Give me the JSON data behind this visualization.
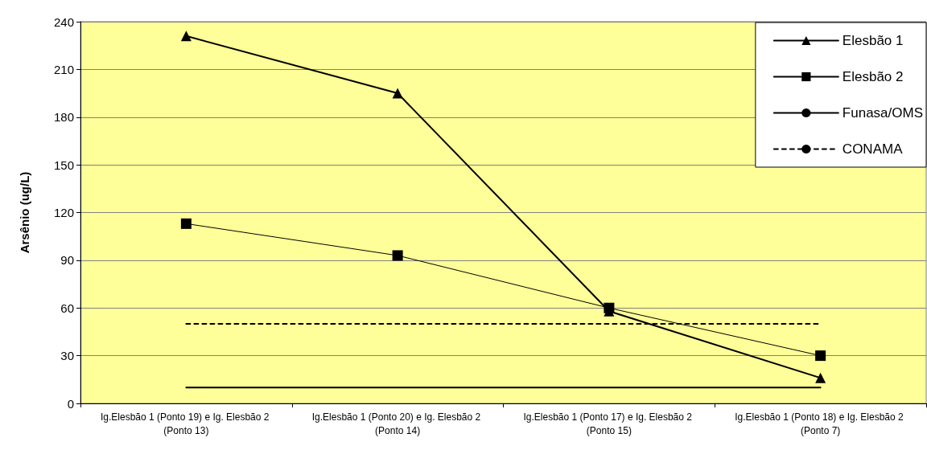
{
  "chart_data": {
    "type": "line",
    "ylabel": "Arsênio (ug/L)",
    "categories": [
      "Ig.Elesbão 1 (Ponto 19) e Ig. Elesbão 2 (Ponto 13)",
      "Ig.Elesbão 1 (Ponto 20) e Ig. Elesbão 2 (Ponto 14)",
      "Ig.Elesbão 1 (Ponto 17) e Ig. Elesbão 2 (Ponto 15)",
      "Ig.Elesbão 1 (Ponto 18) e Ig. Elesbão 2 (Ponto 7)"
    ],
    "series": [
      {
        "name": "Elesbão 1",
        "color": "#000000",
        "marker": "triangle",
        "line_style": "solid",
        "values": [
          231,
          195,
          58,
          16
        ]
      },
      {
        "name": "Elesbão 2",
        "color": "#000000",
        "marker": "square",
        "line_style": "solid",
        "values": [
          113,
          93,
          60,
          30
        ]
      },
      {
        "name": "Funasa/OMS",
        "color": "#000000",
        "marker": "none",
        "line_style": "solid",
        "values": [
          10,
          10,
          10,
          10
        ]
      },
      {
        "name": "CONAMA",
        "color": "#000000",
        "marker": "none",
        "line_style": "dashed",
        "values": [
          50,
          50,
          50,
          50
        ]
      }
    ],
    "ylim": [
      0,
      240
    ],
    "yticks": [
      0,
      30,
      60,
      90,
      120,
      150,
      180,
      210,
      240
    ],
    "grid": "y",
    "legend": "top right"
  }
}
